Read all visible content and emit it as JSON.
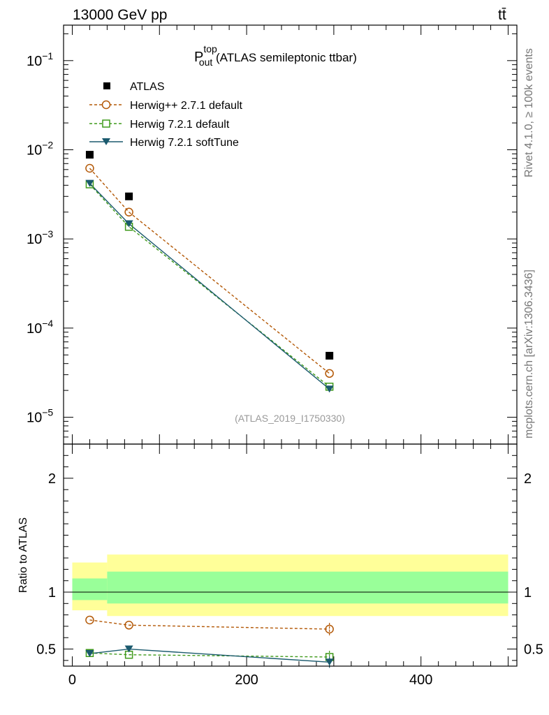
{
  "header": {
    "energy_label": "13000 GeV pp",
    "process_label": "tt̄"
  },
  "side_labels": {
    "rivet": "Rivet 4.1.0, ≥ 100k events",
    "mcplots": "mcplots.cern.ch [arXiv:1306.3436]"
  },
  "chart_data": [
    {
      "type": "line",
      "panel": "main",
      "yscale": "log",
      "title_main": "P",
      "title_sup": "top",
      "title_sub": "out",
      "title_suffix": " (ATLAS semileptonic ttbar)",
      "analysis_id": "(ATLAS_2019_I1750330)",
      "xlim": [
        -10,
        510
      ],
      "ylim": [
        5e-06,
        0.25
      ],
      "y_ticks": [
        {
          "exp": "−1",
          "value": 0.1
        },
        {
          "exp": "−2",
          "value": 0.01
        },
        {
          "exp": "−3",
          "value": 0.001
        },
        {
          "exp": "−4",
          "value": 0.0001
        },
        {
          "exp": "−5",
          "value": 1e-05
        }
      ],
      "y_tick_base": "10",
      "legend_position": "top-left",
      "series": [
        {
          "name": "ATLAS",
          "style": "data",
          "color": "#000000",
          "marker": "square-filled",
          "x": [
            20,
            65,
            295
          ],
          "y": [
            0.0088,
            0.003,
            4.9e-05
          ]
        },
        {
          "name": "Herwig++ 2.7.1 default",
          "style": "dashed",
          "color": "#b35806",
          "marker": "circle-open",
          "x": [
            20,
            65,
            295
          ],
          "y": [
            0.0062,
            0.002,
            3.1e-05
          ]
        },
        {
          "name": "Herwig 7.2.1 default",
          "style": "dashed",
          "color": "#3f9a1a",
          "marker": "square-open",
          "x": [
            20,
            65,
            295
          ],
          "y": [
            0.0041,
            0.00137,
            2.2e-05
          ]
        },
        {
          "name": "Herwig 7.2.1 softTune",
          "style": "solid",
          "color": "#1b5a6e",
          "marker": "triangle-down",
          "x": [
            20,
            65,
            295
          ],
          "y": [
            0.0042,
            0.00148,
            2.07e-05
          ]
        }
      ]
    },
    {
      "type": "line",
      "panel": "ratio",
      "ylabel": "Ratio to ATLAS",
      "xlim": [
        -10,
        510
      ],
      "ylim": [
        0.35,
        2.3
      ],
      "x_ticks": [
        "0",
        "200",
        "400"
      ],
      "x_tick_values": [
        0,
        200,
        400
      ],
      "y_ticks": [
        "0.5",
        "1",
        "2"
      ],
      "y_tick_values": [
        0.5,
        1,
        2
      ],
      "bands": [
        {
          "x_start": 0,
          "x_end": 40,
          "outer": [
            0.84,
            1.26
          ],
          "inner": [
            0.93,
            1.12
          ]
        },
        {
          "x_start": 40,
          "x_end": 500,
          "outer": [
            0.79,
            1.33
          ],
          "inner": [
            0.9,
            1.18
          ]
        }
      ],
      "band_colors": {
        "outer": "#ffff99",
        "inner": "#99ff99"
      },
      "series": [
        {
          "name": "Herwig++ 2.7.1 default",
          "color": "#b35806",
          "style": "dashed",
          "marker": "circle-open",
          "x": [
            20,
            65,
            295
          ],
          "y": [
            0.755,
            0.71,
            0.675
          ],
          "err": [
            0,
            0,
            0.055
          ]
        },
        {
          "name": "Herwig 7.2.1 default",
          "color": "#3f9a1a",
          "style": "dashed",
          "marker": "square-open",
          "x": [
            20,
            65,
            295
          ],
          "y": [
            0.465,
            0.45,
            0.43
          ],
          "err": [
            0,
            0,
            0.055
          ]
        },
        {
          "name": "Herwig 7.2.1 softTune",
          "color": "#1b5a6e",
          "style": "solid",
          "marker": "triangle-down",
          "x": [
            20,
            65,
            295
          ],
          "y": [
            0.46,
            0.5,
            0.385
          ],
          "err": [
            0,
            0,
            0.05
          ]
        }
      ]
    }
  ]
}
